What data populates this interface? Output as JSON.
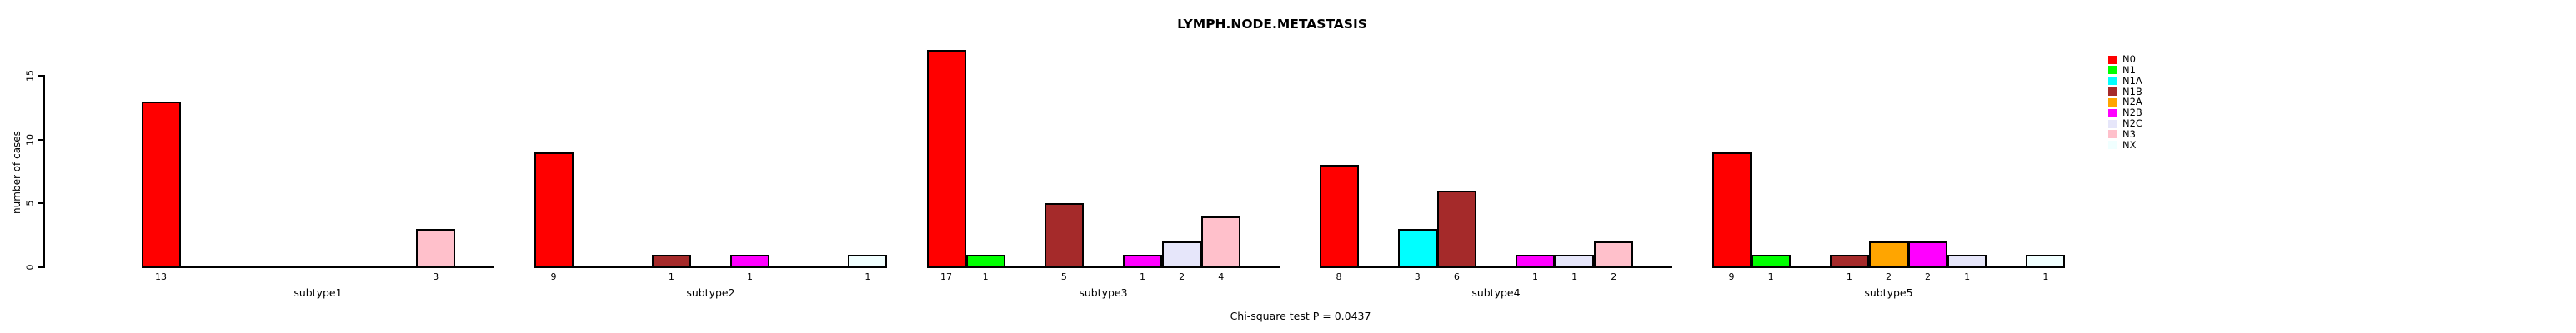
{
  "title": "LYMPH.NODE.METASTASIS",
  "annotation": "Chi-square test P = 0.0437",
  "y_axis": {
    "label": "number of cases",
    "tick_labels": [
      "0",
      "5",
      "10",
      "15"
    ]
  },
  "legend": {
    "position": "right-outside",
    "items": [
      {
        "label": "N0",
        "color": "#FF0000"
      },
      {
        "label": "N1",
        "color": "#00FF00"
      },
      {
        "label": "N1A",
        "color": "#00FFFF"
      },
      {
        "label": "N1B",
        "color": "#A52A2A"
      },
      {
        "label": "N2A",
        "color": "#FFA500"
      },
      {
        "label": "N2B",
        "color": "#FF00FF"
      },
      {
        "label": "N2C",
        "color": "#E6E6FA"
      },
      {
        "label": "N3",
        "color": "#FFC0CB"
      },
      {
        "label": "NX",
        "color": "#F0FFFF"
      }
    ]
  },
  "chart_data": {
    "type": "bar",
    "title": "LYMPH.NODE.METASTASIS",
    "xlabel": "",
    "ylabel": "number of cases",
    "ylim": [
      0,
      17
    ],
    "yticks": [
      0,
      5,
      10,
      15
    ],
    "grid": false,
    "legend_position": "right-outside",
    "bar_value_labels_shown": true,
    "annotation": "Chi-square test P = 0.0437",
    "categories": [
      "subtype1",
      "subtype2",
      "subtype3",
      "subtype4",
      "subtype5"
    ],
    "series": [
      {
        "name": "N0",
        "color": "#FF0000",
        "values": [
          13,
          9,
          17,
          8,
          9
        ]
      },
      {
        "name": "N1",
        "color": "#00FF00",
        "values": [
          0,
          0,
          1,
          0,
          1
        ]
      },
      {
        "name": "N1A",
        "color": "#00FFFF",
        "values": [
          0,
          0,
          0,
          3,
          0
        ]
      },
      {
        "name": "N1B",
        "color": "#A52A2A",
        "values": [
          0,
          1,
          5,
          6,
          1
        ]
      },
      {
        "name": "N2A",
        "color": "#FFA500",
        "values": [
          0,
          0,
          0,
          0,
          2
        ]
      },
      {
        "name": "N2B",
        "color": "#FF00FF",
        "values": [
          0,
          1,
          1,
          1,
          2
        ]
      },
      {
        "name": "N2C",
        "color": "#E6E6FA",
        "values": [
          0,
          0,
          2,
          1,
          1
        ]
      },
      {
        "name": "N3",
        "color": "#FFC0CB",
        "values": [
          3,
          0,
          4,
          2,
          0
        ]
      },
      {
        "name": "NX",
        "color": "#F0FFFF",
        "values": [
          0,
          1,
          0,
          0,
          1
        ]
      }
    ]
  }
}
